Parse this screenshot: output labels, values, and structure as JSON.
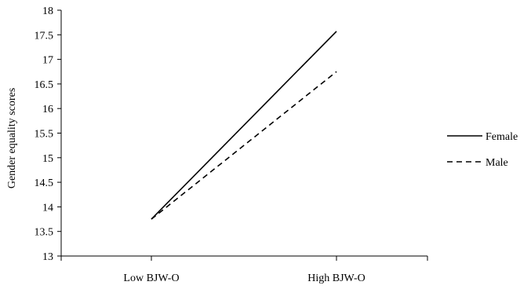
{
  "chart_data": {
    "type": "line",
    "categories": [
      "Low BJW-O",
      "High BJW-O"
    ],
    "series": [
      {
        "name": "Female",
        "values": [
          13.75,
          17.57
        ],
        "line_style": "solid"
      },
      {
        "name": "Male",
        "values": [
          13.75,
          16.75
        ],
        "line_style": "dashed"
      }
    ],
    "ylabel": "Gender equality scores",
    "xlabel": "",
    "ylim": [
      13,
      18
    ],
    "yticks": [
      "13",
      "13.5",
      "14",
      "14.5",
      "15",
      "15.5",
      "16",
      "16.5",
      "17",
      "17.5",
      "18"
    ],
    "grid": false,
    "legend_position": "right",
    "colors": {
      "line": "#000000",
      "axis": "#000000"
    }
  }
}
